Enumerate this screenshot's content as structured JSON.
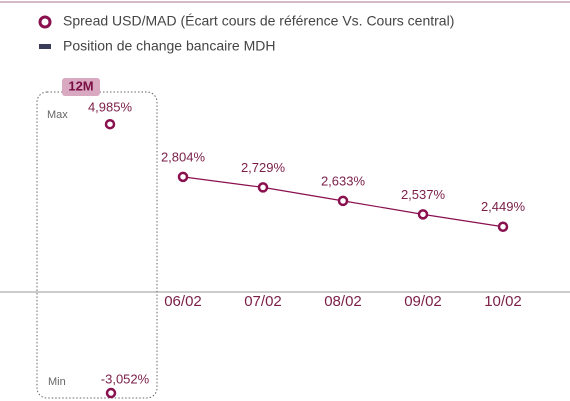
{
  "chart_data": {
    "type": "line",
    "categories": [
      "06/02",
      "07/02",
      "08/02",
      "09/02",
      "10/02"
    ],
    "series": [
      {
        "name": "Spread  USD/MAD (Écart cours de référence Vs. Cours central)",
        "color": "#8a0f4f",
        "values": [
          2.804,
          2.729,
          2.633,
          2.537,
          2.449
        ],
        "value_labels": [
          "2,804%",
          "2,729%",
          "2,633%",
          "2,537%",
          "2,449%"
        ],
        "axis": "y2"
      },
      {
        "name": "Position de change bancaire MDH",
        "color": "#3a3d5a",
        "values": [
          null,
          null,
          null,
          null,
          null
        ]
      }
    ],
    "ylim": [
      -3.2,
      5.2
    ],
    "y2lim": [
      1.23,
      3.23
    ],
    "panel": {
      "label": "12M",
      "max_label": "Max",
      "max": 4.985,
      "max_value_label": "4,985%",
      "min_label": "Min",
      "min": -3.052,
      "min_value_label": "-3,052%"
    }
  }
}
